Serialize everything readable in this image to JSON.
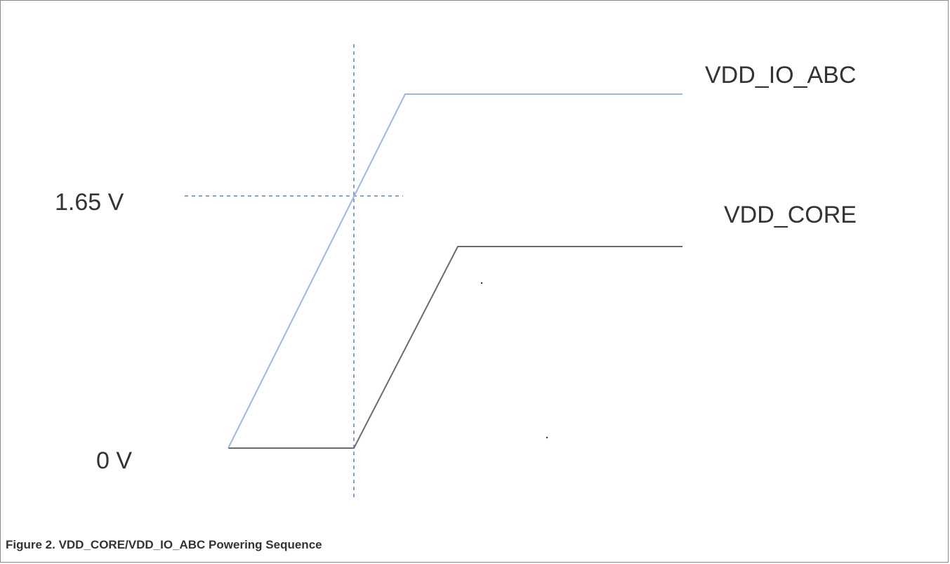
{
  "figure": {
    "caption": "Figure 2.  VDD_CORE/VDD_IO_ABC Powering Sequence"
  },
  "diagram": {
    "voltage_labels": {
      "high": "1.65 V",
      "low": "0 V"
    },
    "signals": {
      "io": {
        "name": "VDD_IO_ABC",
        "color": "#9bb7e0"
      },
      "core": {
        "name": "VDD_CORE",
        "color": "#6b6b6b"
      }
    },
    "guide_color": "#4f86d1"
  }
}
